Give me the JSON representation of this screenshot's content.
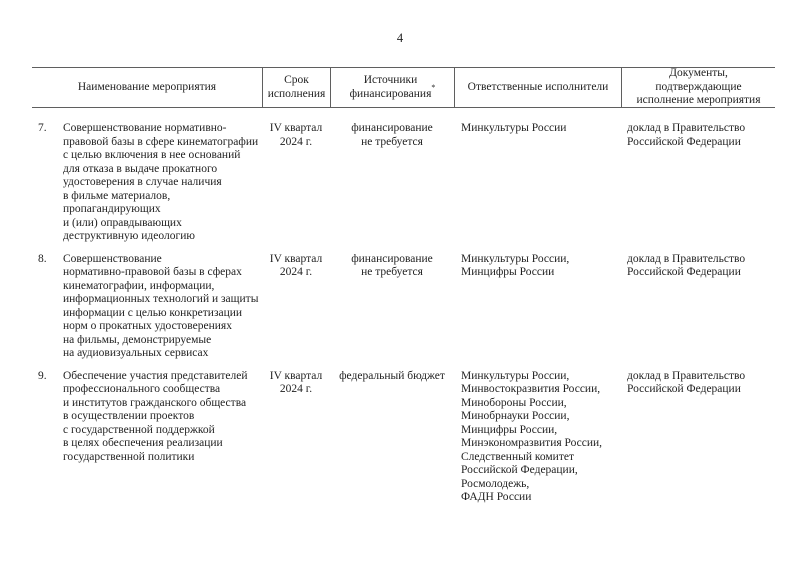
{
  "page": {
    "number": "4"
  },
  "table": {
    "footnote_marker": "*",
    "headers": {
      "name": "Наименование мероприятия",
      "term": "Срок\nисполнения",
      "funding": "Источники\nфинансирования",
      "executors": "Ответственные исполнители",
      "documents": "Документы,\nподтверждающие\nисполнение мероприятия"
    },
    "rows": [
      {
        "num": "7.",
        "name": "Совершенствование нормативно-\nправовой базы в сфере кинематографии\nс целью включения в нее оснований\nдля отказа в выдаче прокатного\nудостоверения в случае наличия\nв фильме материалов,\nпропагандирующих\nи (или) оправдывающих\nдеструктивную идеологию",
        "term": "IV квартал\n2024 г.",
        "funding": "финансирование\nне требуется",
        "executors": "Минкультуры России",
        "documents": "доклад в Правительство\nРоссийской Федерации"
      },
      {
        "num": "8.",
        "name": "Совершенствование\nнормативно-правовой базы в сферах\nкинематографии, информации,\nинформационных технологий и защиты\nинформации с целью конкретизации\nнорм о прокатных удостоверениях\nна фильмы, демонстрируемые\nна аудиовизуальных сервисах",
        "term": "IV квартал\n2024 г.",
        "funding": "финансирование\nне требуется",
        "executors": "Минкультуры России,\nМинцифры России",
        "documents": "доклад в Правительство\nРоссийской Федерации"
      },
      {
        "num": "9.",
        "name": "Обеспечение участия представителей\nпрофессионального сообщества\nи институтов гражданского общества\nв осуществлении проектов\nс государственной поддержкой\nв целях обеспечения реализации\nгосударственной политики",
        "term": "IV квартал\n2024 г.",
        "funding": "федеральный бюджет",
        "executors": "Минкультуры России,\nМинвостокразвития России,\nМинобороны России,\nМинобрнауки России,\nМинцифры России,\nМинэкономразвития России,\nСледственный комитет\nРоссийской Федерации,\nРосмолодежь,\nФАДН России",
        "documents": "доклад в Правительство\nРоссийской Федерации"
      }
    ]
  }
}
